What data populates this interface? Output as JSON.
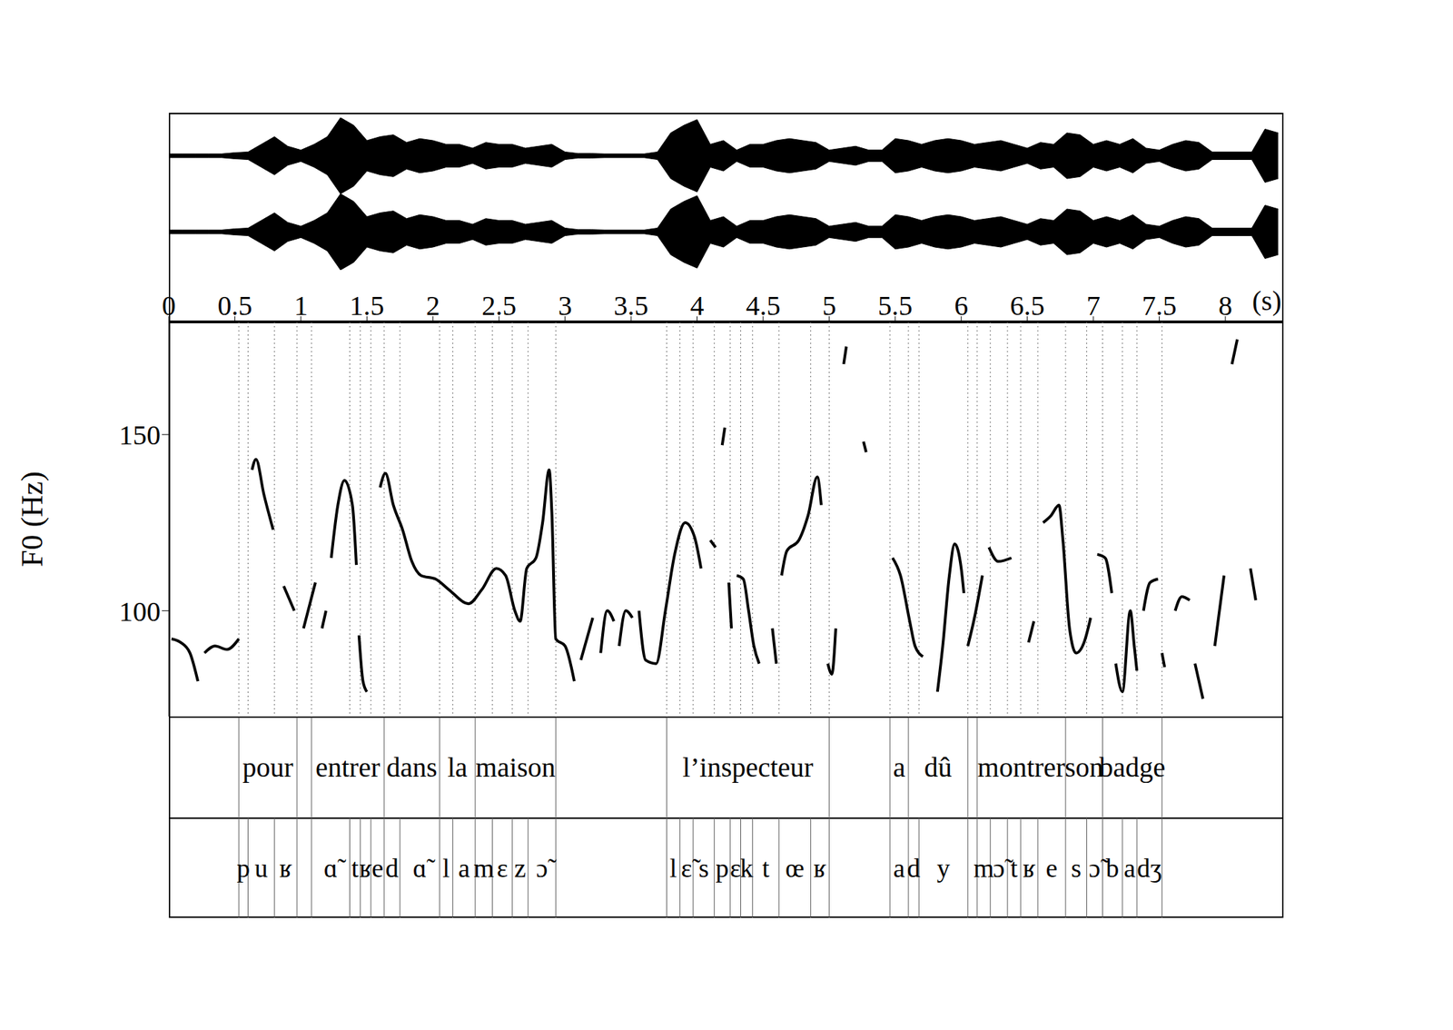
{
  "chart_data": {
    "type": "line",
    "y_label": "F0 (Hz)",
    "x_label": "(s)",
    "color": "#000000",
    "xlim": [
      0,
      8.44
    ],
    "xticks": [
      0,
      0.5,
      1,
      1.5,
      2,
      2.5,
      3,
      3.5,
      4,
      4.5,
      5,
      5.5,
      6,
      6.5,
      7,
      7.5,
      8
    ],
    "ylim": [
      70,
      182
    ],
    "yticks": [
      100,
      150
    ],
    "x": [
      0.02,
      0.09,
      0.16,
      0.22,
      0.25,
      0.27,
      0.35,
      0.44,
      0.53,
      0.56,
      0.63,
      0.66,
      0.72,
      0.79,
      0.82,
      0.87,
      0.95,
      0.98,
      1.02,
      1.11,
      1.13,
      1.16,
      1.19,
      1.21,
      1.23,
      1.28,
      1.33,
      1.39,
      1.42,
      1.43,
      1.44,
      1.47,
      1.5,
      1.55,
      1.6,
      1.64,
      1.7,
      1.77,
      1.84,
      1.91,
      2.02,
      2.12,
      2.27,
      2.37,
      2.48,
      2.55,
      2.62,
      2.66,
      2.71,
      2.78,
      2.83,
      2.88,
      2.9,
      2.93,
      3.0,
      3.07,
      3.1,
      3.12,
      3.21,
      3.24,
      3.27,
      3.32,
      3.37,
      3.39,
      3.41,
      3.46,
      3.51,
      3.53,
      3.56,
      3.61,
      3.69,
      3.76,
      3.83,
      3.91,
      3.98,
      4.03,
      4.06,
      4.1,
      4.14,
      4.16,
      4.19,
      4.21,
      4.22,
      4.24,
      4.26,
      4.28,
      4.3,
      4.35,
      4.39,
      4.43,
      4.47,
      4.5,
      4.57,
      4.6,
      4.62,
      4.64,
      4.68,
      4.77,
      4.84,
      4.91,
      4.94,
      4.96,
      4.99,
      5.02,
      5.05,
      5.08,
      5.11,
      5.13,
      5.2,
      5.26,
      5.28,
      5.35,
      5.48,
      5.54,
      5.61,
      5.65,
      5.71,
      5.76,
      5.82,
      5.86,
      5.91,
      5.95,
      6.0,
      6.02,
      6.03,
      6.05,
      6.1,
      6.16,
      6.18,
      6.21,
      6.28,
      6.38,
      6.45,
      6.51,
      6.55,
      6.58,
      6.62,
      6.68,
      6.74,
      6.77,
      6.82,
      6.87,
      6.93,
      6.98,
      7.0,
      7.03,
      7.09,
      7.14,
      7.15,
      7.17,
      7.22,
      7.28,
      7.31,
      7.33,
      7.35,
      7.38,
      7.43,
      7.49,
      7.5,
      7.52,
      7.54,
      7.58,
      7.62,
      7.67,
      7.73,
      7.75,
      7.77,
      7.83,
      7.87,
      7.92,
      7.99,
      8.02,
      8.05,
      8.09,
      8.15,
      8.19,
      8.23
    ],
    "values": [
      92,
      91,
      88,
      80,
      null,
      88,
      90,
      89,
      92,
      null,
      140,
      143,
      133,
      123,
      null,
      107,
      100,
      null,
      95,
      108,
      null,
      95,
      100,
      null,
      115,
      130,
      137,
      130,
      113,
      null,
      93,
      80,
      77,
      null,
      135,
      139,
      130,
      123,
      114,
      110,
      109,
      106,
      102,
      106,
      112,
      110,
      100,
      97,
      112,
      115,
      125,
      140,
      128,
      92,
      90,
      80,
      null,
      86,
      98,
      null,
      88,
      100,
      97,
      null,
      90,
      100,
      98,
      null,
      100,
      86,
      85,
      100,
      116,
      125,
      121,
      112,
      null,
      120,
      118,
      null,
      147,
      152,
      null,
      108,
      95,
      null,
      110,
      109,
      100,
      90,
      85,
      null,
      95,
      85,
      null,
      110,
      117,
      120,
      127,
      138,
      130,
      null,
      85,
      82,
      95,
      null,
      170,
      175,
      null,
      148,
      145,
      null,
      115,
      110,
      97,
      90,
      87,
      null,
      77,
      90,
      110,
      119,
      112,
      105,
      null,
      90,
      98,
      110,
      null,
      118,
      114,
      115,
      null,
      91,
      97,
      null,
      125,
      127,
      130,
      120,
      95,
      88,
      91,
      98,
      null,
      116,
      115,
      105,
      null,
      85,
      77,
      100,
      90,
      83,
      null,
      100,
      108,
      109,
      null,
      88,
      84,
      null,
      100,
      104,
      103,
      null,
      85,
      75,
      null,
      90,
      110,
      null,
      170,
      177,
      null,
      112,
      103
    ],
    "waveform": {
      "x": [
        0,
        0.1,
        0.2,
        0.3,
        0.4,
        0.5,
        0.6,
        0.7,
        0.8,
        0.9,
        1.0,
        1.1,
        1.2,
        1.3,
        1.4,
        1.5,
        1.6,
        1.7,
        1.8,
        1.9,
        2.0,
        2.1,
        2.2,
        2.3,
        2.4,
        2.5,
        2.6,
        2.7,
        2.8,
        2.9,
        3.0,
        3.1,
        3.2,
        3.3,
        3.4,
        3.5,
        3.6,
        3.7,
        3.8,
        3.9,
        4.0,
        4.1,
        4.2,
        4.3,
        4.4,
        4.5,
        4.6,
        4.7,
        4.8,
        4.9,
        5.0,
        5.1,
        5.2,
        5.3,
        5.4,
        5.5,
        5.6,
        5.7,
        5.8,
        5.9,
        6.0,
        6.1,
        6.2,
        6.3,
        6.4,
        6.5,
        6.6,
        6.7,
        6.8,
        6.9,
        7.0,
        7.1,
        7.2,
        7.3,
        7.4,
        7.5,
        7.6,
        7.7,
        7.8,
        7.9,
        8.0,
        8.1,
        8.2,
        8.3,
        8.4
      ],
      "amplitude": [
        0.05,
        0.05,
        0.05,
        0.05,
        0.05,
        0.08,
        0.1,
        0.3,
        0.5,
        0.25,
        0.15,
        0.3,
        0.5,
        1.0,
        0.8,
        0.4,
        0.5,
        0.55,
        0.35,
        0.45,
        0.4,
        0.3,
        0.3,
        0.2,
        0.35,
        0.3,
        0.3,
        0.2,
        0.25,
        0.3,
        0.1,
        0.06,
        0.06,
        0.05,
        0.05,
        0.05,
        0.05,
        0.1,
        0.6,
        0.8,
        0.95,
        0.3,
        0.4,
        0.15,
        0.3,
        0.3,
        0.4,
        0.45,
        0.4,
        0.35,
        0.15,
        0.2,
        0.25,
        0.15,
        0.15,
        0.45,
        0.4,
        0.3,
        0.4,
        0.45,
        0.4,
        0.3,
        0.35,
        0.4,
        0.3,
        0.2,
        0.35,
        0.3,
        0.6,
        0.55,
        0.3,
        0.4,
        0.3,
        0.45,
        0.2,
        0.15,
        0.3,
        0.4,
        0.35,
        0.1,
        0.1,
        0.1,
        0.1,
        0.7,
        0.6
      ]
    },
    "words": [
      {
        "label": "pour",
        "start": 0.53,
        "end": 0.97
      },
      {
        "label": "entrer",
        "start": 1.08,
        "end": 1.63
      },
      {
        "label": "dans",
        "start": 1.63,
        "end": 2.05
      },
      {
        "label": "la",
        "start": 2.05,
        "end": 2.32
      },
      {
        "label": "maison",
        "start": 2.32,
        "end": 2.93
      },
      {
        "label": "l’inspecteur",
        "start": 3.77,
        "end": 5.0
      },
      {
        "label": "a",
        "start": 5.46,
        "end": 5.6
      },
      {
        "label": "dû",
        "start": 5.6,
        "end": 6.05
      },
      {
        "label": "montrer",
        "start": 6.12,
        "end": 6.79
      },
      {
        "label": "son",
        "start": 6.79,
        "end": 7.07
      },
      {
        "label": "badge",
        "start": 7.07,
        "end": 7.52
      }
    ],
    "phones": [
      {
        "label": "p",
        "start": 0.53,
        "end": 0.6
      },
      {
        "label": "u",
        "start": 0.6,
        "end": 0.8
      },
      {
        "label": "ʁ",
        "start": 0.8,
        "end": 0.97
      },
      {
        "label": "ɑ̃",
        "start": 1.08,
        "end": 1.37
      },
      {
        "label": "t",
        "start": 1.37,
        "end": 1.45
      },
      {
        "label": "ʁ",
        "start": 1.45,
        "end": 1.53
      },
      {
        "label": "e",
        "start": 1.53,
        "end": 1.63
      },
      {
        "label": "d",
        "start": 1.63,
        "end": 1.75
      },
      {
        "label": "ɑ̃",
        "start": 1.75,
        "end": 2.05
      },
      {
        "label": "l",
        "start": 2.05,
        "end": 2.15
      },
      {
        "label": "a",
        "start": 2.15,
        "end": 2.32
      },
      {
        "label": "m",
        "start": 2.32,
        "end": 2.45
      },
      {
        "label": "ɛ",
        "start": 2.45,
        "end": 2.6
      },
      {
        "label": "z",
        "start": 2.6,
        "end": 2.72
      },
      {
        "label": "ɔ̃",
        "start": 2.72,
        "end": 2.93
      },
      {
        "label": "l",
        "start": 3.77,
        "end": 3.87
      },
      {
        "label": "ɛ̃",
        "start": 3.87,
        "end": 3.97
      },
      {
        "label": "s",
        "start": 3.97,
        "end": 4.13
      },
      {
        "label": "p",
        "start": 4.13,
        "end": 4.25
      },
      {
        "label": "ɛ",
        "start": 4.25,
        "end": 4.33
      },
      {
        "label": "k",
        "start": 4.33,
        "end": 4.42
      },
      {
        "label": "t",
        "start": 4.42,
        "end": 4.62
      },
      {
        "label": "œ",
        "start": 4.62,
        "end": 4.86
      },
      {
        "label": "ʁ",
        "start": 4.86,
        "end": 5.0
      },
      {
        "label": "a",
        "start": 5.46,
        "end": 5.6
      },
      {
        "label": "d",
        "start": 5.6,
        "end": 5.68
      },
      {
        "label": "y",
        "start": 5.68,
        "end": 6.05
      },
      {
        "label": "m",
        "start": 6.12,
        "end": 6.22
      },
      {
        "label": "ɔ̃",
        "start": 6.22,
        "end": 6.35
      },
      {
        "label": "t",
        "start": 6.35,
        "end": 6.45
      },
      {
        "label": "ʁ",
        "start": 6.45,
        "end": 6.58
      },
      {
        "label": "e",
        "start": 6.58,
        "end": 6.79
      },
      {
        "label": "s",
        "start": 6.79,
        "end": 6.95
      },
      {
        "label": "ɔ̃",
        "start": 6.95,
        "end": 7.07
      },
      {
        "label": "b",
        "start": 7.07,
        "end": 7.22
      },
      {
        "label": "a",
        "start": 7.22,
        "end": 7.33
      },
      {
        "label": "dʒ",
        "start": 7.33,
        "end": 7.52
      }
    ]
  }
}
